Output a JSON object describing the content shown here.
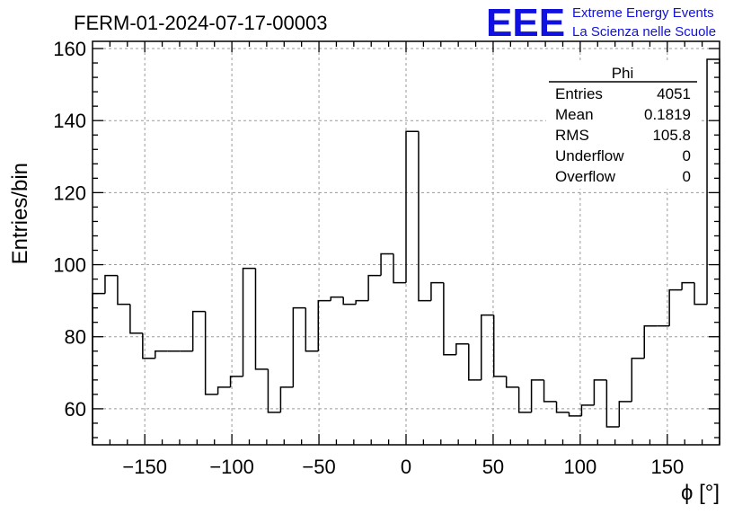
{
  "title": "FERM-01-2024-07-17-00003",
  "logo": {
    "mark": "EEE",
    "line1": "Extreme Energy Events",
    "line2": "La Scienza nelle Scuole",
    "color": "#1010e0"
  },
  "stats_box": {
    "header": "Phi",
    "rows": [
      {
        "label": "Entries",
        "value": "4051"
      },
      {
        "label": "Mean",
        "value": "0.1819"
      },
      {
        "label": "RMS",
        "value": "105.8"
      },
      {
        "label": "Underflow",
        "value": "0"
      },
      {
        "label": "Overflow",
        "value": "0"
      }
    ]
  },
  "chart_data": {
    "type": "histogram",
    "title": "FERM-01-2024-07-17-00003",
    "xlabel": "ϕ [°]",
    "ylabel": "Entries/bin",
    "xlim": [
      -180,
      180
    ],
    "ylim": [
      50,
      162
    ],
    "bin_width": 7.2,
    "grid": true,
    "x_ticks": [
      -150,
      -100,
      -50,
      0,
      50,
      100,
      150
    ],
    "x_tick_labels": [
      "−150",
      "−100",
      "−50",
      "0",
      "50",
      "100",
      "150"
    ],
    "y_ticks": [
      60,
      80,
      100,
      120,
      140,
      160
    ],
    "y_tick_labels": [
      "60",
      "80",
      "100",
      "120",
      "140",
      "160"
    ],
    "bin_edges": [
      -180,
      -172.8,
      -165.6,
      -158.4,
      -151.2,
      -144,
      -136.8,
      -129.6,
      -122.4,
      -115.2,
      -108,
      -100.8,
      -93.6,
      -86.4,
      -79.2,
      -72,
      -64.8,
      -57.6,
      -50.4,
      -43.2,
      -36,
      -28.8,
      -21.6,
      -14.4,
      -7.2,
      0,
      7.2,
      14.4,
      21.6,
      28.8,
      36,
      43.2,
      50.4,
      57.6,
      64.8,
      72,
      79.2,
      86.4,
      93.6,
      100.8,
      108,
      115.2,
      122.4,
      129.6,
      136.8,
      144,
      151.2,
      158.4,
      165.6,
      172.8,
      180
    ],
    "values": [
      92,
      97,
      89,
      81,
      74,
      76,
      76,
      76,
      87,
      64,
      66,
      69,
      99,
      71,
      59,
      66,
      88,
      76,
      90,
      91,
      89,
      90,
      97,
      103,
      95,
      137,
      90,
      95,
      75,
      78,
      68,
      86,
      69,
      66,
      59,
      68,
      62,
      59,
      58,
      61,
      68,
      55,
      62,
      74,
      83,
      83,
      93,
      95,
      89,
      157
    ]
  }
}
